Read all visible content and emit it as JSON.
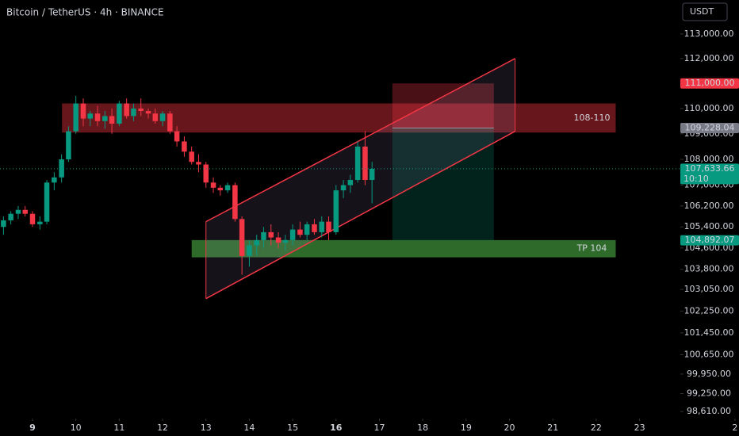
{
  "chart_data": {
    "type": "candlestick",
    "title": "Bitcoin / TetherUS · 4h · BINANCE",
    "currency_button": "USDT",
    "log_scale": true,
    "up_color": "#089981",
    "down_color": "#f23645",
    "x": [
      8.33,
      8.5,
      8.67,
      8.83,
      9,
      9.17,
      9.33,
      9.5,
      9.67,
      9.83,
      10,
      10.17,
      10.33,
      10.5,
      10.67,
      10.83,
      11,
      11.17,
      11.33,
      11.5,
      11.67,
      11.83,
      12,
      12.17,
      12.33,
      12.5,
      12.67,
      12.83,
      13,
      13.17,
      13.33,
      13.5,
      13.67,
      13.83,
      14,
      14.17,
      14.33,
      14.5,
      14.67,
      14.83,
      15,
      15.17,
      15.33,
      15.5,
      15.67,
      15.83,
      16,
      16.17,
      16.33,
      16.5,
      16.67,
      16.83
    ],
    "open": [
      105400,
      105650,
      105900,
      106050,
      105900,
      105500,
      105600,
      107100,
      107300,
      108000,
      109100,
      110200,
      109600,
      109800,
      109500,
      109700,
      109400,
      110200,
      109700,
      110000,
      109900,
      109800,
      109500,
      109800,
      109100,
      108700,
      108300,
      107900,
      107800,
      107100,
      106900,
      106800,
      107000,
      105700,
      104300,
      104700,
      104900,
      105200,
      105000,
      104800,
      104900,
      105300,
      105100,
      105500,
      105200,
      105600,
      105200,
      106800,
      107000,
      107200,
      108500,
      107200
    ],
    "high": [
      105800,
      106000,
      106200,
      106200,
      106000,
      105800,
      107200,
      107500,
      108200,
      109300,
      110500,
      110400,
      109900,
      110100,
      109900,
      110000,
      110300,
      110400,
      110200,
      110400,
      110000,
      110000,
      109900,
      109900,
      109300,
      108900,
      108500,
      108200,
      107900,
      107300,
      107000,
      107100,
      107100,
      105800,
      104900,
      105100,
      105400,
      105500,
      105200,
      105100,
      105500,
      105600,
      105600,
      105700,
      105800,
      105800,
      107000,
      107200,
      107400,
      108700,
      109100,
      107900
    ],
    "low": [
      105100,
      105500,
      105700,
      105800,
      105400,
      105300,
      105500,
      106800,
      107100,
      107900,
      109000,
      109300,
      109300,
      109300,
      109200,
      109000,
      109300,
      109600,
      109500,
      109700,
      109600,
      109400,
      109300,
      109000,
      108500,
      108100,
      107800,
      107500,
      106900,
      106700,
      106600,
      106700,
      105600,
      103600,
      103900,
      104300,
      104600,
      104700,
      104600,
      104500,
      104700,
      105000,
      104900,
      105100,
      105000,
      104900,
      105100,
      106500,
      106700,
      107100,
      107000,
      106300
    ],
    "close": [
      105650,
      105900,
      106050,
      105900,
      105500,
      105600,
      107100,
      107300,
      108000,
      109100,
      110200,
      109600,
      109800,
      109500,
      109700,
      109400,
      110200,
      109700,
      110000,
      109900,
      109800,
      109500,
      109800,
      109100,
      108700,
      108300,
      107900,
      107800,
      107100,
      106900,
      106800,
      107000,
      105700,
      104300,
      104700,
      104900,
      105200,
      105000,
      104800,
      104900,
      105300,
      105100,
      105500,
      105200,
      105600,
      105200,
      106800,
      107000,
      107200,
      108500,
      107200,
      107634
    ],
    "xlim": [
      8.25,
      23.94
    ],
    "xticks": [
      9,
      10,
      11,
      12,
      13,
      14,
      15,
      16,
      17,
      18,
      19,
      20,
      21,
      22,
      23,
      {
        "value": 25.2,
        "label": "2"
      }
    ],
    "ylim": [
      98360,
      114390
    ],
    "yticks": [
      {
        "value": 113000,
        "label": "113,000.00"
      },
      {
        "value": 112000,
        "label": "112,000.00"
      },
      {
        "value": 110000,
        "label": "110,000.00"
      },
      {
        "value": 109000,
        "label": "109,000.00"
      },
      {
        "value": 108000,
        "label": "108,000.00"
      },
      {
        "value": 107000,
        "label": "107,000.00"
      },
      {
        "value": 106200,
        "label": "106,200.00"
      },
      {
        "value": 105400,
        "label": "105,400.00"
      },
      {
        "value": 104600,
        "label": "104,600.00"
      },
      {
        "value": 103800,
        "label": "103,800.00"
      },
      {
        "value": 103050,
        "label": "103,050.00"
      },
      {
        "value": 102250,
        "label": "102,250.00"
      },
      {
        "value": 101450,
        "label": "101,450.00"
      },
      {
        "value": 100650,
        "label": "100,650.00"
      },
      {
        "value": 99950,
        "label": "99,950.00"
      },
      {
        "value": 99250,
        "label": "99,250.00"
      },
      {
        "value": 98610,
        "label": "98,610.00"
      }
    ],
    "zones": [
      {
        "label": "108-110",
        "x": [
          9.68,
          22.45
        ],
        "y": [
          109050,
          110200
        ],
        "color": "#8a1e26"
      },
      {
        "label": "TP 104",
        "x": [
          12.67,
          22.45
        ],
        "y": [
          104250,
          104900
        ],
        "color": "#3d8f3a"
      }
    ],
    "channel": [
      {
        "x": [
          13.0,
          20.13
        ],
        "y": [
          105600,
          112000
        ]
      },
      {
        "x": [
          13.0,
          20.13
        ],
        "y": [
          102710,
          109100
        ]
      }
    ],
    "position": {
      "x": [
        17.3,
        19.64
      ],
      "entry": 109228,
      "stop": 111000,
      "target": 104892
    },
    "price_labels": [
      {
        "value": 111000,
        "label": "111,000.00",
        "color": "#f23645"
      },
      {
        "value": 109228,
        "label": "109,228.04",
        "color": "#787b86"
      },
      {
        "value": 107634,
        "label": "107,633.66",
        "sub": "10:10",
        "color": "#089981"
      },
      {
        "value": 104892,
        "label": "104,892.07",
        "color": "#089981"
      }
    ]
  }
}
